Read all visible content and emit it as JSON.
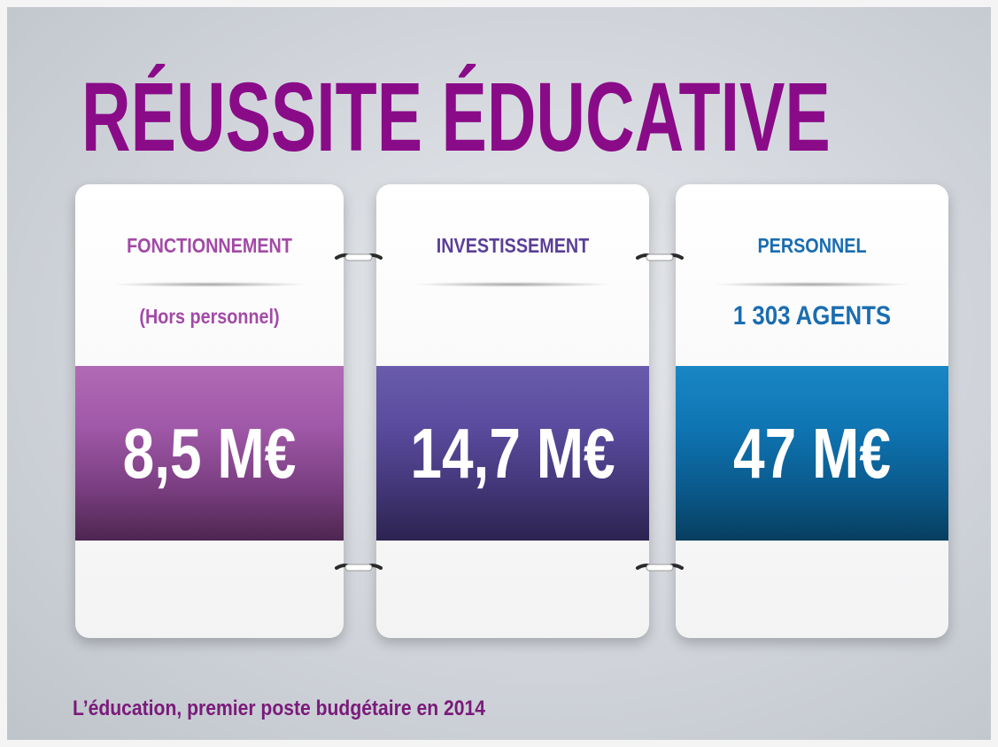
{
  "title": "RÉUSSITE ÉDUCATIVE",
  "cards": [
    {
      "label": "FONCTIONNEMENT",
      "sublabel": "(Hors personnel)",
      "value": "8,5 M€"
    },
    {
      "label": "INVESTISSEMENT",
      "value": "14,7 M€"
    },
    {
      "label": "PERSONNEL",
      "sublabel": "1 303 AGENTS",
      "value": "47 M€"
    }
  ],
  "footer": "L’éducation, premier poste budgétaire en 2014"
}
